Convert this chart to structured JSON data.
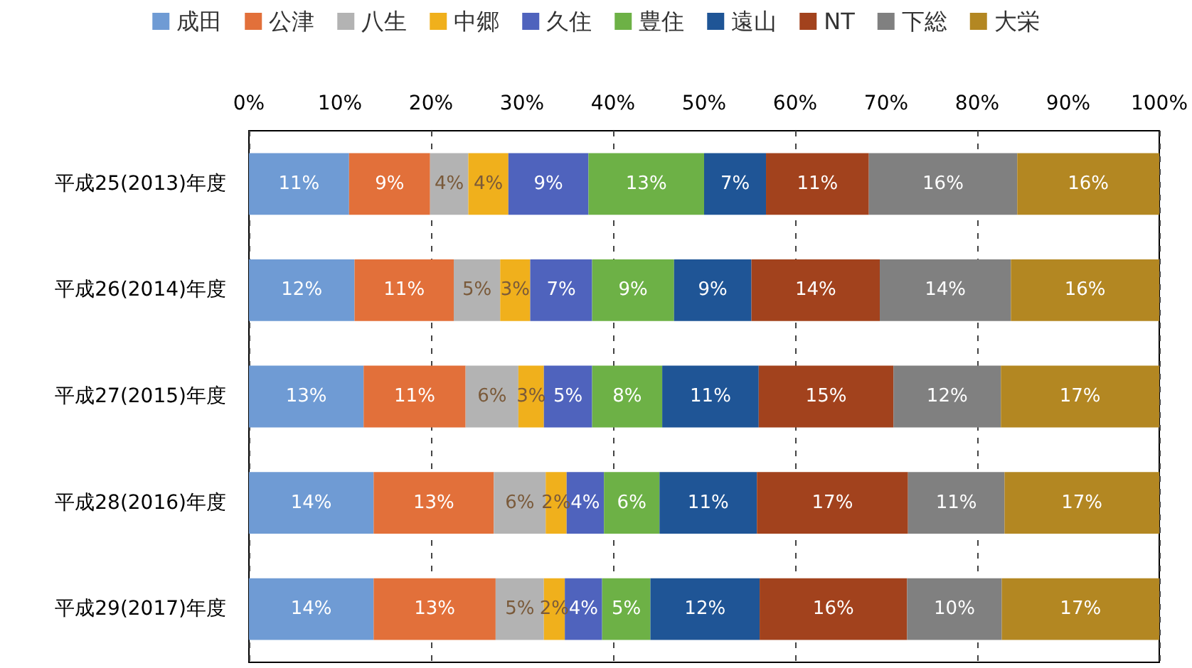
{
  "chart_data": {
    "type": "bar",
    "orientation": "horizontal",
    "stacked": true,
    "categories": [
      "平成25(2013)年度",
      "平成26(2014)年度",
      "平成27(2015)年度",
      "平成28(2016)年度",
      "平成29(2017)年度"
    ],
    "xlim": [
      0,
      100
    ],
    "xticks": [
      {
        "value": 0,
        "label": "0%"
      },
      {
        "value": 10,
        "label": "10%"
      },
      {
        "value": 20,
        "label": "20%"
      },
      {
        "value": 30,
        "label": "30%"
      },
      {
        "value": 40,
        "label": "40%"
      },
      {
        "value": 50,
        "label": "50%"
      },
      {
        "value": 60,
        "label": "60%"
      },
      {
        "value": 70,
        "label": "70%"
      },
      {
        "value": 80,
        "label": "80%"
      },
      {
        "value": 90,
        "label": "90%"
      },
      {
        "value": 100,
        "label": "100%"
      }
    ],
    "grid": "x",
    "legend": "top",
    "series": [
      {
        "name": "成田",
        "color": "#6f9bd4",
        "values": [
          11.0,
          11.6,
          12.6,
          13.7,
          13.7
        ],
        "value_labels": [
          "11%",
          "12%",
          "13%",
          "14%",
          "14%"
        ]
      },
      {
        "name": "公津",
        "color": "#e2703a",
        "values": [
          8.9,
          10.9,
          11.2,
          13.2,
          13.4
        ],
        "value_labels": [
          "9%",
          "11%",
          "11%",
          "13%",
          "13%"
        ]
      },
      {
        "name": "八生",
        "color": "#b3b3b3",
        "values": [
          4.2,
          5.1,
          5.8,
          5.7,
          5.3
        ],
        "value_labels": [
          "4%",
          "5%",
          "6%",
          "6%",
          "5%"
        ]
      },
      {
        "name": "中郷",
        "color": "#f0b01c",
        "values": [
          4.4,
          3.3,
          2.8,
          2.3,
          2.3
        ],
        "value_labels": [
          "4%",
          "3%",
          "3%",
          "2%",
          "2%"
        ]
      },
      {
        "name": "久住",
        "color": "#4f63bd",
        "values": [
          8.8,
          6.8,
          5.3,
          4.1,
          4.1
        ],
        "value_labels": [
          "9%",
          "7%",
          "5%",
          "4%",
          "4%"
        ]
      },
      {
        "name": "豊住",
        "color": "#6db146",
        "values": [
          12.7,
          9.0,
          7.7,
          6.1,
          5.3
        ],
        "value_labels": [
          "13%",
          "9%",
          "8%",
          "6%",
          "5%"
        ]
      },
      {
        "name": "遠山",
        "color": "#1f5596",
        "values": [
          6.8,
          8.5,
          10.6,
          10.7,
          12.0
        ],
        "value_labels": [
          "7%",
          "9%",
          "11%",
          "11%",
          "12%"
        ]
      },
      {
        "name": "NT",
        "color": "#a2421d",
        "values": [
          11.3,
          14.1,
          14.8,
          16.6,
          16.2
        ],
        "value_labels": [
          "11%",
          "14%",
          "15%",
          "17%",
          "16%"
        ]
      },
      {
        "name": "下総",
        "color": "#808080",
        "values": [
          16.3,
          14.4,
          11.8,
          10.6,
          10.4
        ],
        "value_labels": [
          "16%",
          "14%",
          "12%",
          "11%",
          "10%"
        ]
      },
      {
        "name": "大栄",
        "color": "#b38722",
        "values": [
          15.6,
          16.3,
          17.4,
          17.0,
          17.3
        ],
        "value_labels": [
          "16%",
          "16%",
          "17%",
          "17%",
          "17%"
        ]
      }
    ]
  }
}
